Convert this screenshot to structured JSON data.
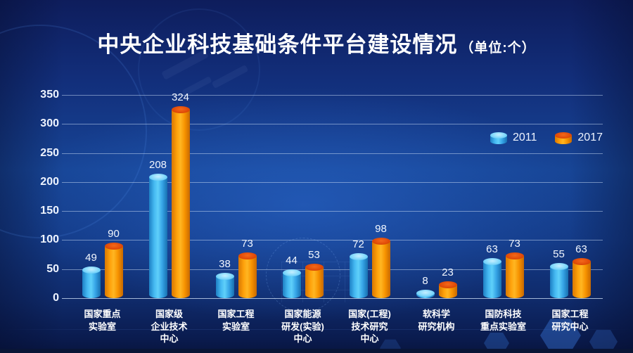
{
  "title": "中央企业科技基础条件平台建设情况",
  "unit_label": "（单位:个）",
  "legend": [
    {
      "label": "2011",
      "color": "#45b8f5"
    },
    {
      "label": "2017",
      "color": "#ff9a04"
    }
  ],
  "colors": {
    "background": "#123a88",
    "gridline": "#cbddf5",
    "text": "#ffffff",
    "series_2011": "#45b8f5",
    "series_2017": "#ff9a04",
    "series_2017_cap": "#e04a08"
  },
  "chart_data": {
    "type": "bar",
    "title": "中央企业科技基础条件平台建设情况",
    "unit": "个",
    "categories": [
      "国家重点实验室",
      "国家级企业技术中心",
      "国家工程实验室",
      "国家能源研发(实验)中心",
      "国家(工程)技术研究中心",
      "软科学研究机构",
      "国防科技重点实验室",
      "国家工程研究中心"
    ],
    "categories_lines": [
      [
        "国家重点",
        "实验室"
      ],
      [
        "国家级",
        "企业技术",
        "中心"
      ],
      [
        "国家工程",
        "实验室"
      ],
      [
        "国家能源",
        "研发(实验)",
        "中心"
      ],
      [
        "国家(工程)",
        "技术研究",
        "中心"
      ],
      [
        "软科学",
        "研究机构"
      ],
      [
        "国防科技",
        "重点实验室"
      ],
      [
        "国家工程",
        "研究中心"
      ]
    ],
    "series": [
      {
        "name": "2011",
        "color": "#45b8f5",
        "values": [
          49,
          208,
          38,
          44,
          72,
          8,
          63,
          55
        ]
      },
      {
        "name": "2017",
        "color": "#ff9a04",
        "values": [
          90,
          324,
          73,
          53,
          98,
          23,
          73,
          63
        ]
      }
    ],
    "xlabel": "",
    "ylabel": "",
    "ylim": [
      0,
      350
    ],
    "ytick_step": 50,
    "yticks": [
      0,
      50,
      100,
      150,
      200,
      250,
      300,
      350
    ],
    "grid": true,
    "legend_position": "upper-right"
  }
}
